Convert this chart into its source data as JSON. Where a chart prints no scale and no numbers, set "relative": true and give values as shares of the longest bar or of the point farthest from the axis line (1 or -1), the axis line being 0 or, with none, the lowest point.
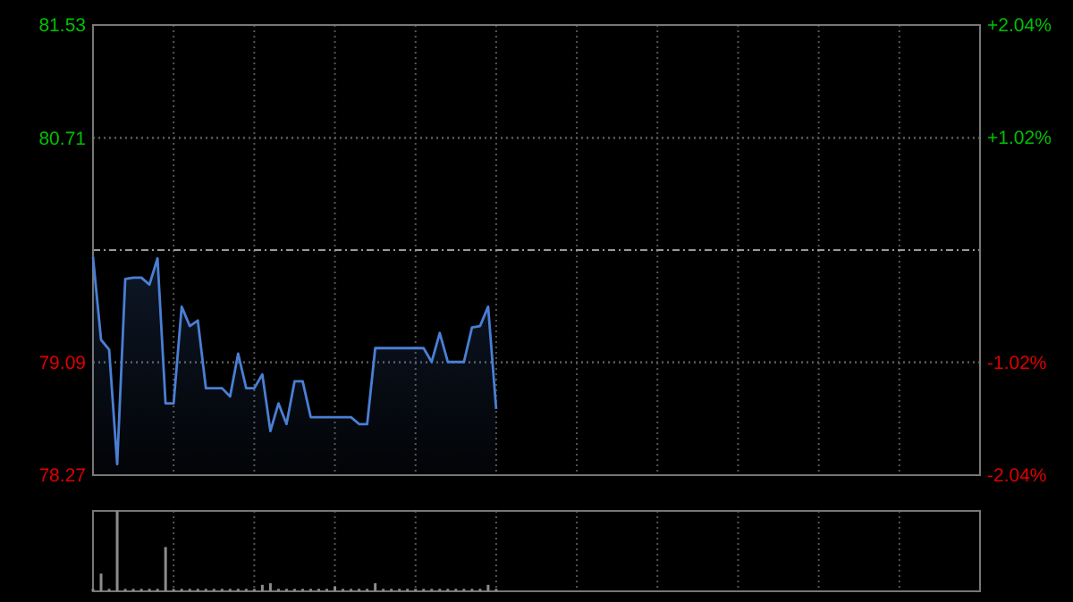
{
  "chart_data": [
    {
      "type": "area",
      "categories": [
        null,
        null,
        null,
        null,
        null,
        null,
        null,
        null,
        null,
        null,
        null,
        null,
        null,
        null,
        null,
        null,
        null,
        null,
        null,
        null,
        null,
        null,
        null,
        null,
        null,
        null,
        null,
        null,
        null,
        null,
        null,
        null,
        null,
        null,
        null,
        null,
        null,
        null,
        null,
        null,
        null,
        null,
        null,
        null,
        null,
        null,
        null,
        null,
        null,
        null,
        null,
        null,
        null,
        null,
        null,
        null,
        null,
        null,
        null,
        null,
        null,
        null,
        null,
        null,
        null,
        null,
        null,
        null,
        null,
        null,
        null,
        null,
        null,
        null,
        null,
        null,
        null,
        null,
        null,
        null,
        null,
        null,
        null,
        null,
        null,
        null,
        null,
        null,
        null,
        null,
        null,
        null,
        null,
        null,
        null,
        null,
        null,
        null,
        null,
        null,
        null,
        null,
        null,
        null,
        null,
        null,
        null,
        null,
        null,
        null,
        null
      ],
      "ylim": [
        78.27,
        81.53
      ],
      "yticks": [
        78.27,
        79.09,
        80.71,
        81.53
      ],
      "y2lim": [
        -2.04,
        2.04
      ],
      "y2ticks": [
        {
          "value": -2.04,
          "label": "-2.04%"
        },
        {
          "value": -1.02,
          "label": "-1.02%"
        },
        {
          "value": 1.02,
          "label": "+1.02%"
        },
        {
          "value": 2.04,
          "label": "+2.04%"
        }
      ],
      "tick_labels": "y",
      "grid": true,
      "ref_lines": [
        {
          "axis": "y",
          "value": 79.9,
          "line_style": "dashed",
          "color": "#9a9a9a"
        }
      ],
      "series": [
        {
          "color": "#4a7fd4",
          "values": [
            79.85,
            79.25,
            79.18,
            78.35,
            79.69,
            79.7,
            79.7,
            79.65,
            79.84,
            78.79,
            78.79,
            79.49,
            79.35,
            79.39,
            78.9,
            78.9,
            78.9,
            78.84,
            79.15,
            78.9,
            78.9,
            79.0,
            78.59,
            78.79,
            78.64,
            78.95,
            78.95,
            78.69,
            78.69,
            78.69,
            78.69,
            78.69,
            78.69,
            78.64,
            78.64,
            79.19,
            79.19,
            79.19,
            79.19,
            79.19,
            79.19,
            79.19,
            79.09,
            79.3,
            79.09,
            79.09,
            79.09,
            79.34,
            79.35,
            79.49,
            78.75,
            null,
            null,
            null,
            null,
            null,
            null,
            null,
            null,
            null,
            null,
            null,
            null,
            null,
            null,
            null,
            null,
            null,
            null,
            null,
            null,
            null,
            null,
            null,
            null,
            null,
            null,
            null,
            null,
            null,
            null,
            null,
            null,
            null,
            null,
            null,
            null,
            null,
            null,
            null,
            null,
            null,
            null,
            null,
            null,
            null,
            null,
            null,
            null,
            null,
            null,
            null,
            null,
            null,
            null,
            null,
            null,
            null,
            null,
            null,
            null
          ]
        }
      ]
    },
    {
      "type": "bar",
      "relative": true,
      "categories": [
        null,
        null,
        null,
        null,
        null,
        null,
        null,
        null,
        null,
        null,
        null,
        null,
        null,
        null,
        null,
        null,
        null,
        null,
        null,
        null,
        null,
        null,
        null,
        null,
        null,
        null,
        null,
        null,
        null,
        null,
        null,
        null,
        null,
        null,
        null,
        null,
        null,
        null,
        null,
        null,
        null,
        null,
        null,
        null,
        null,
        null,
        null,
        null,
        null,
        null,
        null,
        null,
        null,
        null,
        null,
        null,
        null,
        null,
        null,
        null,
        null,
        null,
        null,
        null,
        null,
        null,
        null,
        null,
        null,
        null,
        null,
        null,
        null,
        null,
        null,
        null,
        null,
        null,
        null,
        null,
        null,
        null,
        null,
        null,
        null,
        null,
        null,
        null,
        null,
        null,
        null,
        null,
        null,
        null,
        null,
        null,
        null,
        null,
        null,
        null,
        null,
        null,
        null,
        null,
        null,
        null,
        null,
        null,
        null,
        null,
        null
      ],
      "tick_labels": false,
      "grid": "x",
      "series": [
        {
          "color": "#8c8c8c",
          "values": [
            0.03,
            0.22,
            0.03,
            1,
            0.03,
            0.03,
            0.03,
            0.03,
            0.03,
            0.55,
            0.03,
            0.03,
            0.03,
            0.03,
            0.03,
            0.03,
            0.03,
            0.03,
            0.03,
            0.03,
            0.03,
            0.08,
            0.1,
            0.03,
            0.03,
            0.03,
            0.03,
            0.03,
            0.03,
            0.03,
            0.06,
            0.03,
            0.03,
            0.03,
            0.03,
            0.1,
            0.03,
            0.03,
            0.03,
            0.03,
            0.03,
            0.03,
            0.03,
            0.03,
            0.03,
            0.03,
            0.03,
            0.03,
            0.03,
            0.08,
            0.03,
            null,
            null,
            null,
            null,
            null,
            null,
            null,
            null,
            null,
            null,
            null,
            null,
            null,
            null,
            null,
            null,
            null,
            null,
            null,
            null,
            null,
            null,
            null,
            null,
            null,
            null,
            null,
            null,
            null,
            null,
            null,
            null,
            null,
            null,
            null,
            null,
            null,
            null,
            null,
            null,
            null,
            null,
            null,
            null,
            null,
            null,
            null,
            null,
            null,
            null,
            null,
            null,
            null,
            null,
            null,
            null,
            null,
            null,
            null,
            null
          ]
        }
      ]
    }
  ]
}
